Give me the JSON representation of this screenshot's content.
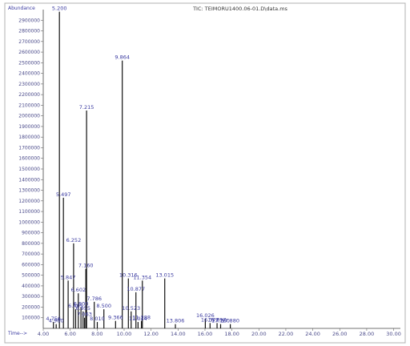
{
  "chart_data": {
    "type": "line",
    "title": "TIC: TEIMORU1400.06-01.D\\data.ms",
    "ylabel": "Abundance",
    "xlabel": "Time-->",
    "xlim": [
      4.0,
      30.5
    ],
    "ylim": [
      0,
      3000000
    ],
    "xticks": [
      4.0,
      6.0,
      8.0,
      10.0,
      12.0,
      14.0,
      16.0,
      18.0,
      20.0,
      22.0,
      24.0,
      26.0,
      28.0,
      30.0
    ],
    "xtick_labels": [
      "4.00",
      "6.00",
      "8.00",
      "10.00",
      "12.00",
      "14.00",
      "16.00",
      "18.00",
      "20.00",
      "22.00",
      "24.00",
      "26.00",
      "28.00",
      "30.00"
    ],
    "yticks": [
      100000,
      200000,
      300000,
      400000,
      500000,
      600000,
      700000,
      800000,
      900000,
      1000000,
      1100000,
      1200000,
      1300000,
      1400000,
      1500000,
      1600000,
      1700000,
      1800000,
      1900000,
      2000000,
      2100000,
      2200000,
      2300000,
      2400000,
      2500000,
      2600000,
      2700000,
      2800000,
      2900000
    ],
    "ytick_labels": [
      "100000",
      "200000",
      "300000",
      "400000",
      "500000",
      "600000",
      "700000",
      "800000",
      "900000",
      "1000000",
      "1100000",
      "1200000",
      "1300000",
      "1400000",
      "1500000",
      "1600000",
      "1700000",
      "1800000",
      "1900000",
      "2000000",
      "2100000",
      "2200000",
      "2300000",
      "2400000",
      "2500000",
      "2600000",
      "2700000",
      "2800000",
      "2900000"
    ],
    "grid": false,
    "peaks": [
      {
        "rt": 4.756,
        "label": "4.756",
        "height": 60000
      },
      {
        "rt": 4.96,
        "label": "4.960",
        "height": 40000
      },
      {
        "rt": 5.2,
        "label": "5.200",
        "height": 2980000
      },
      {
        "rt": 5.497,
        "label": "5.497",
        "height": 1230000
      },
      {
        "rt": 5.847,
        "label": "5.847",
        "height": 450000
      },
      {
        "rt": 6.252,
        "label": "6.252",
        "height": 800000
      },
      {
        "rt": 6.405,
        "label": "6.405",
        "height": 180000
      },
      {
        "rt": 6.602,
        "label": "6.602",
        "height": 330000
      },
      {
        "rt": 6.8,
        "label": "6.800",
        "height": 200000
      },
      {
        "rt": 6.955,
        "label": "6.955",
        "height": 160000
      },
      {
        "rt": 7.063,
        "label": "7.063",
        "height": 100000
      },
      {
        "rt": 7.215,
        "label": "7.215",
        "height": 2050000
      },
      {
        "rt": 7.16,
        "label": "7.160",
        "height": 560000
      },
      {
        "rt": 7.786,
        "label": "7.786",
        "height": 250000
      },
      {
        "rt": 8.01,
        "label": "8.010",
        "height": 60000
      },
      {
        "rt": 8.5,
        "label": "8.500",
        "height": 180000
      },
      {
        "rt": 9.366,
        "label": "9.366",
        "height": 70000
      },
      {
        "rt": 9.864,
        "label": "9.864",
        "height": 2520000
      },
      {
        "rt": 10.316,
        "label": "10.316",
        "height": 470000
      },
      {
        "rt": 10.523,
        "label": "10.523",
        "height": 160000
      },
      {
        "rt": 10.877,
        "label": "10.877",
        "height": 340000
      },
      {
        "rt": 11.034,
        "label": "11.034",
        "height": 60000
      },
      {
        "rt": 11.288,
        "label": "11.288",
        "height": 70000
      },
      {
        "rt": 11.354,
        "label": "11.354",
        "height": 450000
      },
      {
        "rt": 13.015,
        "label": "13.015",
        "height": 470000
      },
      {
        "rt": 13.806,
        "label": "13.806",
        "height": 40000
      },
      {
        "rt": 16.026,
        "label": "16.026",
        "height": 90000
      },
      {
        "rt": 16.377,
        "label": "16.377",
        "height": 50000
      },
      {
        "rt": 16.897,
        "label": "16.897",
        "height": 50000
      },
      {
        "rt": 17.16,
        "label": "17.160",
        "height": 40000
      },
      {
        "rt": 17.88,
        "label": "17.880",
        "height": 40000
      }
    ]
  }
}
